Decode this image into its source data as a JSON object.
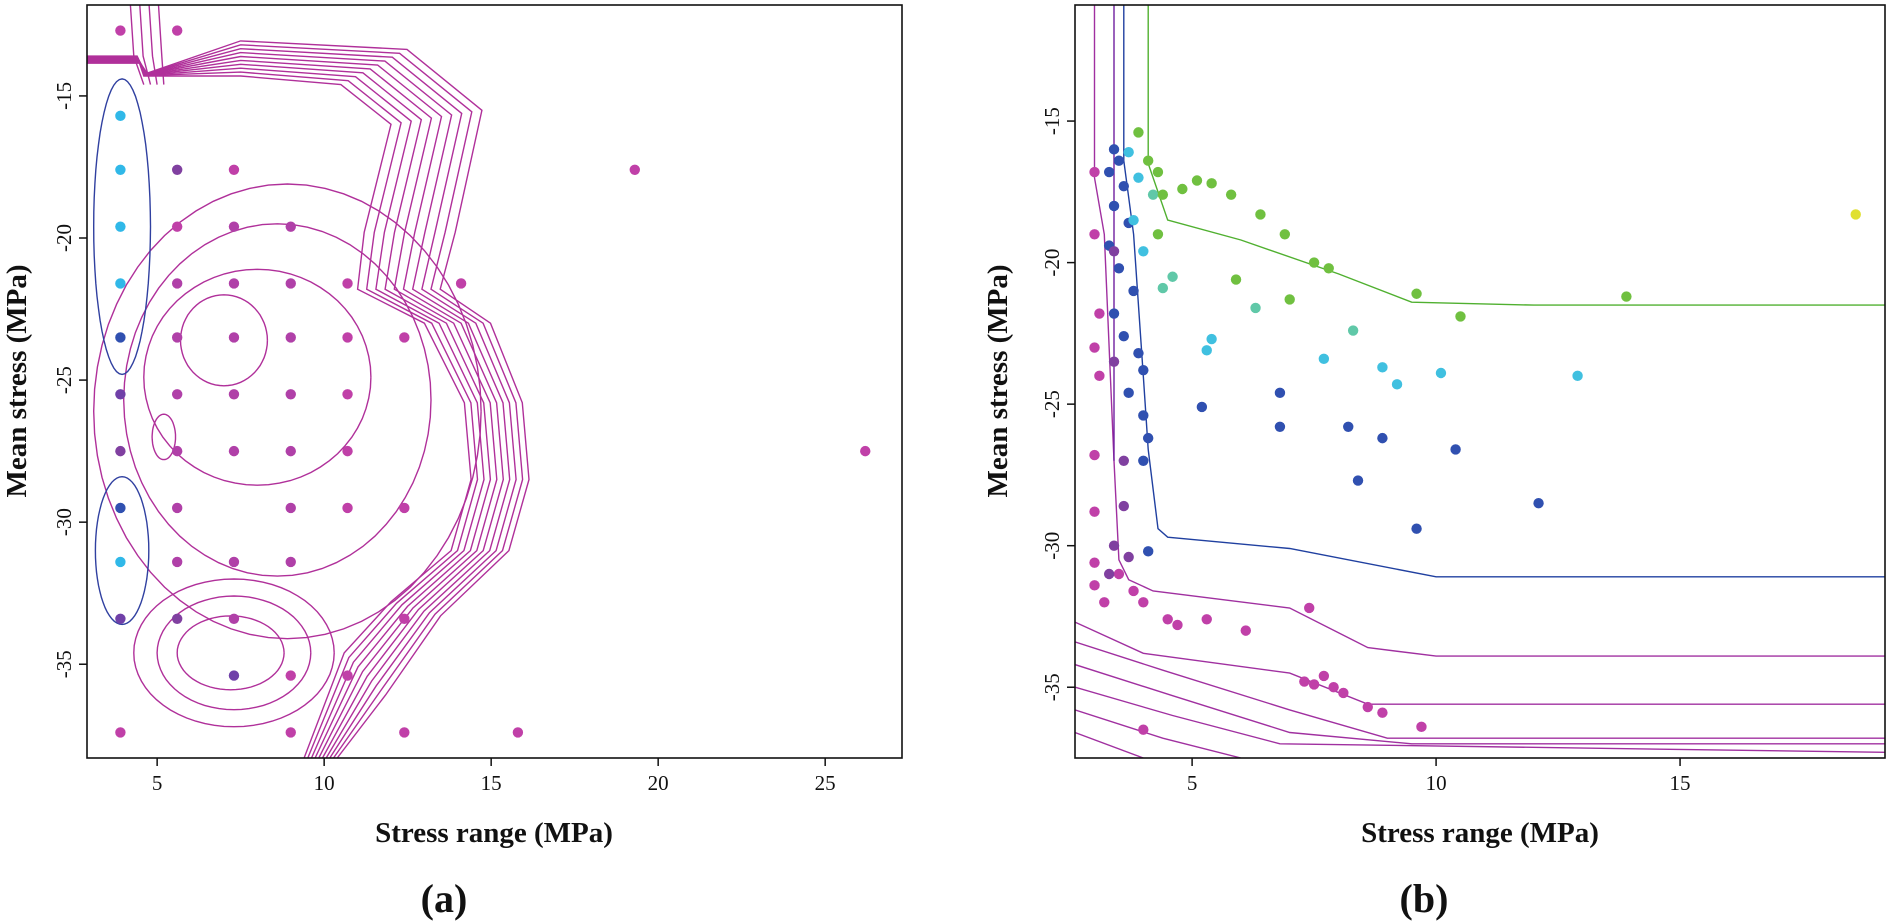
{
  "chart_data": [
    {
      "type": "scatter",
      "panel_label": "(a)",
      "xlabel": "Stress range (MPa)",
      "ylabel": "Mean stress  (MPa)",
      "xlim": [
        2.9,
        27.3
      ],
      "ylim": [
        -38.3,
        -11.8
      ],
      "xticks": [
        5,
        10,
        15,
        20,
        25
      ],
      "yticks": [
        -15,
        -20,
        -25,
        -30,
        -35
      ],
      "contours": "magenta density contour lines around the points, nested around the central grid and two inner blue contours at x≈4",
      "points": [
        {
          "x": 3.9,
          "y": -12.7,
          "c": "#c040a8"
        },
        {
          "x": 5.6,
          "y": -12.7,
          "c": "#c040a8"
        },
        {
          "x": 3.9,
          "y": -15.7,
          "c": "#30b8e8"
        },
        {
          "x": 3.9,
          "y": -17.6,
          "c": "#30b8e8"
        },
        {
          "x": 5.6,
          "y": -17.6,
          "c": "#8040a0"
        },
        {
          "x": 7.3,
          "y": -17.6,
          "c": "#c040a8"
        },
        {
          "x": 19.3,
          "y": -17.6,
          "c": "#c040a8"
        },
        {
          "x": 3.9,
          "y": -19.6,
          "c": "#30b8e8"
        },
        {
          "x": 5.6,
          "y": -19.6,
          "c": "#c040a8"
        },
        {
          "x": 7.3,
          "y": -19.6,
          "c": "#b040a8"
        },
        {
          "x": 9.0,
          "y": -19.6,
          "c": "#b040a8"
        },
        {
          "x": 3.9,
          "y": -21.6,
          "c": "#30b8e8"
        },
        {
          "x": 5.6,
          "y": -21.6,
          "c": "#b040a8"
        },
        {
          "x": 7.3,
          "y": -21.6,
          "c": "#b040a8"
        },
        {
          "x": 9.0,
          "y": -21.6,
          "c": "#b040a8"
        },
        {
          "x": 10.7,
          "y": -21.6,
          "c": "#c040a8"
        },
        {
          "x": 14.1,
          "y": -21.6,
          "c": "#c040a8"
        },
        {
          "x": 3.9,
          "y": -23.5,
          "c": "#3050b0"
        },
        {
          "x": 5.6,
          "y": -23.5,
          "c": "#b040a8"
        },
        {
          "x": 7.3,
          "y": -23.5,
          "c": "#b040a8"
        },
        {
          "x": 9.0,
          "y": -23.5,
          "c": "#b040a8"
        },
        {
          "x": 10.7,
          "y": -23.5,
          "c": "#c040a8"
        },
        {
          "x": 12.4,
          "y": -23.5,
          "c": "#c040a8"
        },
        {
          "x": 3.9,
          "y": -25.5,
          "c": "#7040a8"
        },
        {
          "x": 5.6,
          "y": -25.5,
          "c": "#b040a8"
        },
        {
          "x": 7.3,
          "y": -25.5,
          "c": "#b040a8"
        },
        {
          "x": 9.0,
          "y": -25.5,
          "c": "#b040a8"
        },
        {
          "x": 10.7,
          "y": -25.5,
          "c": "#c040a8"
        },
        {
          "x": 3.9,
          "y": -27.5,
          "c": "#8040a0"
        },
        {
          "x": 5.6,
          "y": -27.5,
          "c": "#b040a8"
        },
        {
          "x": 7.3,
          "y": -27.5,
          "c": "#b040a8"
        },
        {
          "x": 9.0,
          "y": -27.5,
          "c": "#b040a8"
        },
        {
          "x": 10.7,
          "y": -27.5,
          "c": "#c040a8"
        },
        {
          "x": 26.2,
          "y": -27.5,
          "c": "#c040a8"
        },
        {
          "x": 3.9,
          "y": -29.5,
          "c": "#3050b0"
        },
        {
          "x": 5.6,
          "y": -29.5,
          "c": "#b040a8"
        },
        {
          "x": 9.0,
          "y": -29.5,
          "c": "#b040a8"
        },
        {
          "x": 10.7,
          "y": -29.5,
          "c": "#c040a8"
        },
        {
          "x": 12.4,
          "y": -29.5,
          "c": "#c040a8"
        },
        {
          "x": 3.9,
          "y": -31.4,
          "c": "#30b8e8"
        },
        {
          "x": 5.6,
          "y": -31.4,
          "c": "#b040a8"
        },
        {
          "x": 7.3,
          "y": -31.4,
          "c": "#b040a8"
        },
        {
          "x": 9.0,
          "y": -31.4,
          "c": "#b040a8"
        },
        {
          "x": 3.9,
          "y": -33.4,
          "c": "#7040a8"
        },
        {
          "x": 5.6,
          "y": -33.4,
          "c": "#8040a0"
        },
        {
          "x": 7.3,
          "y": -33.4,
          "c": "#b040a8"
        },
        {
          "x": 12.4,
          "y": -33.4,
          "c": "#c040a8"
        },
        {
          "x": 7.3,
          "y": -35.4,
          "c": "#7040a8"
        },
        {
          "x": 9.0,
          "y": -35.4,
          "c": "#c040a8"
        },
        {
          "x": 10.7,
          "y": -35.4,
          "c": "#c040a8"
        },
        {
          "x": 3.9,
          "y": -37.4,
          "c": "#c040a8"
        },
        {
          "x": 9.0,
          "y": -37.4,
          "c": "#c040a8"
        },
        {
          "x": 12.4,
          "y": -37.4,
          "c": "#c040a8"
        },
        {
          "x": 15.8,
          "y": -37.4,
          "c": "#c040a8"
        }
      ]
    },
    {
      "type": "scatter",
      "panel_label": "(b)",
      "xlabel": "Stress range (MPa)",
      "ylabel": "Mean stress  (MPa)",
      "xlim": [
        2.6,
        19.2
      ],
      "ylim": [
        -37.5,
        -10.9
      ],
      "xticks": [
        5,
        10,
        15
      ],
      "yticks": [
        -15,
        -20,
        -25,
        -30,
        -35
      ],
      "boundaries": "class boundary lines (green, blue, purple/magenta) partitioning the plane",
      "points": [
        {
          "x": 3.4,
          "y": -16.0,
          "c": "#3050b0"
        },
        {
          "x": 3.5,
          "y": -16.4,
          "c": "#3050b0"
        },
        {
          "x": 3.3,
          "y": -16.8,
          "c": "#3050b0"
        },
        {
          "x": 3.6,
          "y": -17.3,
          "c": "#3050b0"
        },
        {
          "x": 3.4,
          "y": -18.0,
          "c": "#3050b0"
        },
        {
          "x": 3.7,
          "y": -18.6,
          "c": "#3050b0"
        },
        {
          "x": 3.3,
          "y": -19.4,
          "c": "#3050b0"
        },
        {
          "x": 3.5,
          "y": -20.2,
          "c": "#3050b0"
        },
        {
          "x": 3.8,
          "y": -21.0,
          "c": "#3050b0"
        },
        {
          "x": 3.4,
          "y": -21.8,
          "c": "#3050b0"
        },
        {
          "x": 3.6,
          "y": -22.6,
          "c": "#3050b0"
        },
        {
          "x": 3.9,
          "y": -23.2,
          "c": "#3050b0"
        },
        {
          "x": 4.0,
          "y": -23.8,
          "c": "#3050b0"
        },
        {
          "x": 3.7,
          "y": -24.6,
          "c": "#3050b0"
        },
        {
          "x": 4.0,
          "y": -25.4,
          "c": "#3050b0"
        },
        {
          "x": 4.1,
          "y": -26.2,
          "c": "#3050b0"
        },
        {
          "x": 4.0,
          "y": -27.0,
          "c": "#3050b0"
        },
        {
          "x": 4.1,
          "y": -30.2,
          "c": "#3050b0"
        },
        {
          "x": 5.2,
          "y": -25.1,
          "c": "#3050b0"
        },
        {
          "x": 6.8,
          "y": -24.6,
          "c": "#3050b0"
        },
        {
          "x": 6.8,
          "y": -25.8,
          "c": "#3050b0"
        },
        {
          "x": 8.2,
          "y": -25.8,
          "c": "#3050b0"
        },
        {
          "x": 8.9,
          "y": -26.2,
          "c": "#3050b0"
        },
        {
          "x": 8.4,
          "y": -27.7,
          "c": "#3050b0"
        },
        {
          "x": 10.4,
          "y": -26.6,
          "c": "#3050b0"
        },
        {
          "x": 12.1,
          "y": -28.5,
          "c": "#3050b0"
        },
        {
          "x": 9.6,
          "y": -29.4,
          "c": "#3050b0"
        },
        {
          "x": 3.7,
          "y": -16.1,
          "c": "#40c0e0"
        },
        {
          "x": 3.9,
          "y": -17.0,
          "c": "#40c0e0"
        },
        {
          "x": 3.8,
          "y": -18.5,
          "c": "#40c0e0"
        },
        {
          "x": 4.0,
          "y": -19.6,
          "c": "#40c0e0"
        },
        {
          "x": 5.4,
          "y": -22.7,
          "c": "#40c0e0"
        },
        {
          "x": 5.3,
          "y": -23.1,
          "c": "#40c0e0"
        },
        {
          "x": 7.7,
          "y": -23.4,
          "c": "#40c0e0"
        },
        {
          "x": 8.9,
          "y": -23.7,
          "c": "#40c0e0"
        },
        {
          "x": 9.2,
          "y": -24.3,
          "c": "#40c0e0"
        },
        {
          "x": 10.1,
          "y": -23.9,
          "c": "#40c0e0"
        },
        {
          "x": 12.9,
          "y": -24.0,
          "c": "#40c0e0"
        },
        {
          "x": 4.2,
          "y": -17.6,
          "c": "#60c8a8"
        },
        {
          "x": 4.4,
          "y": -20.9,
          "c": "#60c8a8"
        },
        {
          "x": 4.6,
          "y": -20.5,
          "c": "#60c8a8"
        },
        {
          "x": 6.3,
          "y": -21.6,
          "c": "#60c8a8"
        },
        {
          "x": 8.3,
          "y": -22.4,
          "c": "#60c8a8"
        },
        {
          "x": 3.9,
          "y": -15.4,
          "c": "#70c040"
        },
        {
          "x": 4.1,
          "y": -16.4,
          "c": "#70c040"
        },
        {
          "x": 4.3,
          "y": -16.8,
          "c": "#70c040"
        },
        {
          "x": 4.4,
          "y": -17.6,
          "c": "#70c040"
        },
        {
          "x": 4.8,
          "y": -17.4,
          "c": "#70c040"
        },
        {
          "x": 5.1,
          "y": -17.1,
          "c": "#70c040"
        },
        {
          "x": 5.4,
          "y": -17.2,
          "c": "#70c040"
        },
        {
          "x": 5.8,
          "y": -17.6,
          "c": "#70c040"
        },
        {
          "x": 6.4,
          "y": -18.3,
          "c": "#70c040"
        },
        {
          "x": 6.9,
          "y": -19.0,
          "c": "#70c040"
        },
        {
          "x": 7.5,
          "y": -20.0,
          "c": "#70c040"
        },
        {
          "x": 7.8,
          "y": -20.2,
          "c": "#70c040"
        },
        {
          "x": 5.9,
          "y": -20.6,
          "c": "#70c040"
        },
        {
          "x": 7.0,
          "y": -21.3,
          "c": "#70c040"
        },
        {
          "x": 9.6,
          "y": -21.1,
          "c": "#70c040"
        },
        {
          "x": 10.5,
          "y": -21.9,
          "c": "#70c040"
        },
        {
          "x": 13.9,
          "y": -21.2,
          "c": "#70c040"
        },
        {
          "x": 4.3,
          "y": -19.0,
          "c": "#70c040"
        },
        {
          "x": 18.6,
          "y": -18.3,
          "c": "#e0e030"
        },
        {
          "x": 3.0,
          "y": -16.8,
          "c": "#c040a8"
        },
        {
          "x": 3.0,
          "y": -19.0,
          "c": "#c040a8"
        },
        {
          "x": 3.1,
          "y": -21.8,
          "c": "#c040a8"
        },
        {
          "x": 3.0,
          "y": -23.0,
          "c": "#c040a8"
        },
        {
          "x": 3.1,
          "y": -24.0,
          "c": "#c040a8"
        },
        {
          "x": 3.0,
          "y": -26.8,
          "c": "#c040a8"
        },
        {
          "x": 3.0,
          "y": -28.8,
          "c": "#c040a8"
        },
        {
          "x": 3.0,
          "y": -30.6,
          "c": "#c040a8"
        },
        {
          "x": 3.0,
          "y": -31.4,
          "c": "#c040a8"
        },
        {
          "x": 3.2,
          "y": -32.0,
          "c": "#c040a8"
        },
        {
          "x": 3.5,
          "y": -31.0,
          "c": "#c040a8"
        },
        {
          "x": 3.8,
          "y": -31.6,
          "c": "#c040a8"
        },
        {
          "x": 4.0,
          "y": -32.0,
          "c": "#c040a8"
        },
        {
          "x": 4.0,
          "y": -36.5,
          "c": "#c040a8"
        },
        {
          "x": 4.5,
          "y": -32.6,
          "c": "#c040a8"
        },
        {
          "x": 4.7,
          "y": -32.8,
          "c": "#c040a8"
        },
        {
          "x": 5.3,
          "y": -32.6,
          "c": "#c040a8"
        },
        {
          "x": 6.1,
          "y": -33.0,
          "c": "#c040a8"
        },
        {
          "x": 7.4,
          "y": -32.2,
          "c": "#c040a8"
        },
        {
          "x": 7.3,
          "y": -34.8,
          "c": "#c040a8"
        },
        {
          "x": 7.5,
          "y": -34.9,
          "c": "#c040a8"
        },
        {
          "x": 7.7,
          "y": -34.6,
          "c": "#c040a8"
        },
        {
          "x": 7.9,
          "y": -35.0,
          "c": "#c040a8"
        },
        {
          "x": 8.1,
          "y": -35.2,
          "c": "#c040a8"
        },
        {
          "x": 8.6,
          "y": -35.7,
          "c": "#c040a8"
        },
        {
          "x": 8.9,
          "y": -35.9,
          "c": "#c040a8"
        },
        {
          "x": 9.7,
          "y": -36.4,
          "c": "#c040a8"
        },
        {
          "x": 3.4,
          "y": -19.6,
          "c": "#8040a0"
        },
        {
          "x": 3.4,
          "y": -23.5,
          "c": "#8040a0"
        },
        {
          "x": 3.6,
          "y": -27.0,
          "c": "#8040a0"
        },
        {
          "x": 3.6,
          "y": -28.6,
          "c": "#8040a0"
        },
        {
          "x": 3.4,
          "y": -30.0,
          "c": "#8040a0"
        },
        {
          "x": 3.7,
          "y": -30.4,
          "c": "#8040a0"
        },
        {
          "x": 3.3,
          "y": -31.0,
          "c": "#8040a0"
        }
      ]
    }
  ]
}
